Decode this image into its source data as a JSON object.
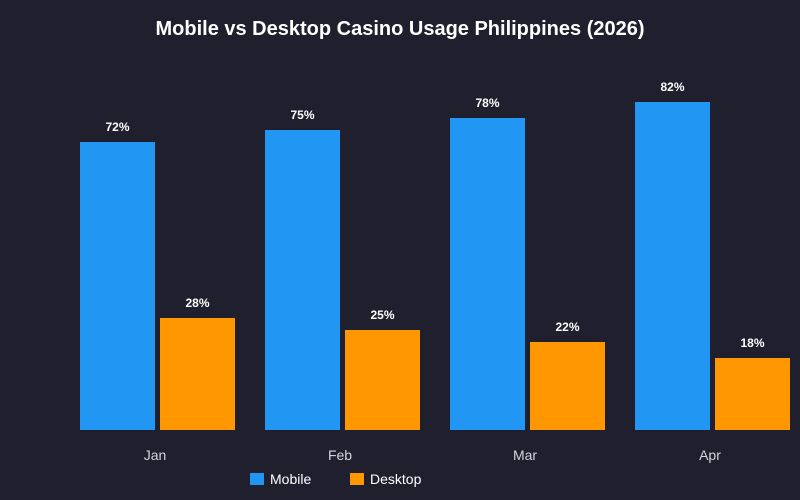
{
  "chart_data": {
    "type": "bar",
    "title": "Mobile vs Desktop Casino Usage Philippines (2026)",
    "xlabel": "",
    "ylabel": "",
    "categories": [
      "Jan",
      "Feb",
      "Mar",
      "Apr"
    ],
    "ylim": [
      0,
      100
    ],
    "grid": false,
    "legend_position": "bottom",
    "series": [
      {
        "name": "Mobile",
        "values": [
          72,
          75,
          78,
          82
        ],
        "labels": [
          "72%",
          "75%",
          "78%",
          "82%"
        ],
        "color": "#2196f3"
      },
      {
        "name": "Desktop",
        "values": [
          28,
          25,
          22,
          18
        ],
        "labels": [
          "28%",
          "25%",
          "22%",
          "18%"
        ],
        "color": "#ff9800"
      }
    ]
  }
}
